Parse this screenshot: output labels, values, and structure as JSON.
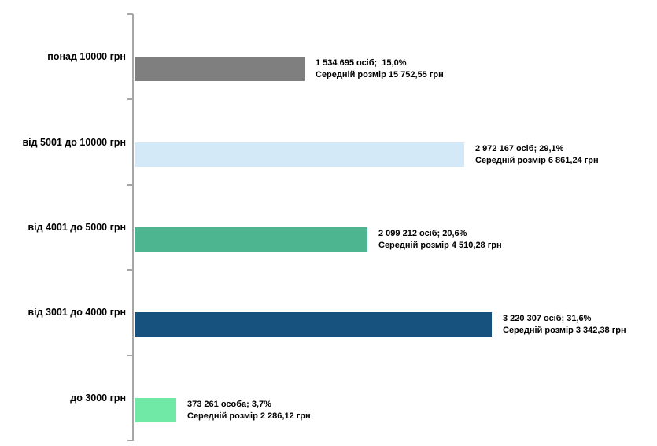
{
  "chart_data": {
    "type": "bar",
    "orientation": "horizontal",
    "title": "",
    "xlabel": "",
    "ylabel": "",
    "xlim": [
      0,
      3500000
    ],
    "grid": false,
    "legend": "none",
    "axis_color": "#a6a6a6",
    "text_color": "#000000",
    "categories": [
      "понад 10000 грн",
      "від 5001 до 10000 грн",
      "від 4001 до 5000 грн",
      "від 3001 до 4000 грн",
      "до 3000 грн"
    ],
    "rows": [
      {
        "category": "понад 10000 грн",
        "persons": 1534695,
        "percent": 15.0,
        "avg_amount_uah": 15752.55,
        "label_line1": "1 534 695 осіб;  15,0%",
        "label_line2": "Середній розмір 15 752,55 грн",
        "color": "#7f7f7f"
      },
      {
        "category": "від 5001 до 10000 грн",
        "persons": 2972167,
        "percent": 29.1,
        "avg_amount_uah": 6861.24,
        "label_line1": "2 972 167 осіб; 29,1%",
        "label_line2": "Середній розмір 6 861,24 грн",
        "color": "#d3e9f8"
      },
      {
        "category": "від 4001 до 5000 грн",
        "persons": 2099212,
        "percent": 20.6,
        "avg_amount_uah": 4510.28,
        "label_line1": "2 099 212 осіб; 20,6%",
        "label_line2": "Середній розмір 4 510,28 грн",
        "color": "#4db690"
      },
      {
        "category": "від 3001 до 4000 грн",
        "persons": 3220307,
        "percent": 31.6,
        "avg_amount_uah": 3342.38,
        "label_line1": "3 220 307 осіб; 31,6%",
        "label_line2": "Середній розмір 3 342,38 грн",
        "color": "#17517e"
      },
      {
        "category": "до 3000 грн",
        "persons": 373261,
        "percent": 3.7,
        "avg_amount_uah": 2286.12,
        "label_line1": "373 261 особа; 3,7%",
        "label_line2": "Середній розмір 2 286,12 грн",
        "color": "#70e9a6"
      }
    ]
  }
}
